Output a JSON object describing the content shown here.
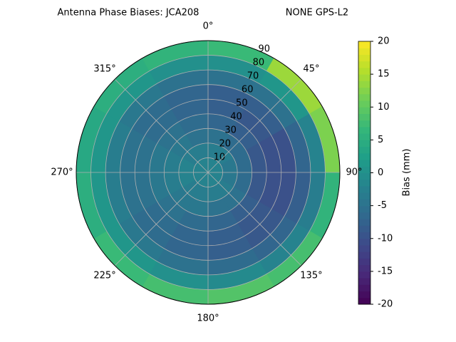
{
  "chart_data": {
    "type": "polar-heatmap",
    "title": "Antenna Phase Biases: JCA208",
    "subtitle": "NONE GPS-L2",
    "colorbar_label": "Bias (mm)",
    "colormap": "viridis",
    "clim": [
      -20,
      20
    ],
    "cticks": [
      -20,
      -15,
      -10,
      -5,
      0,
      5,
      10,
      15,
      20
    ],
    "rlim": [
      0,
      90
    ],
    "rticks": [
      10,
      20,
      30,
      40,
      50,
      60,
      70,
      80,
      90
    ],
    "thetaticks": [
      {
        "value": 0,
        "label": "0°"
      },
      {
        "value": 45,
        "label": "45°"
      },
      {
        "value": 90,
        "label": "90°"
      },
      {
        "value": 135,
        "label": "135°"
      },
      {
        "value": 180,
        "label": "180°"
      },
      {
        "value": 225,
        "label": "225°"
      },
      {
        "value": 270,
        "label": "270°"
      },
      {
        "value": 315,
        "label": "315°"
      }
    ],
    "r_bins": [
      0,
      10,
      20,
      30,
      40,
      50,
      60,
      70,
      80,
      90
    ],
    "theta_bins": [
      0,
      30,
      60,
      90,
      120,
      150,
      180,
      210,
      240,
      270,
      300,
      330,
      360
    ],
    "grid": true,
    "values": [
      [
        -2,
        -2,
        -2,
        -2,
        -2,
        -2,
        -2,
        -2,
        -2,
        -2,
        -2,
        -2
      ],
      [
        -3,
        -3,
        -4,
        -4,
        -3,
        -3,
        -3,
        -3,
        -2,
        -2,
        -3,
        -3
      ],
      [
        -5,
        -6,
        -6,
        -6,
        -5,
        -5,
        -4,
        -4,
        -3,
        -3,
        -4,
        -5
      ],
      [
        -7,
        -8,
        -9,
        -9,
        -8,
        -7,
        -6,
        -5,
        -4,
        -4,
        -5,
        -6
      ],
      [
        -8,
        -9,
        -10,
        -10,
        -9,
        -8,
        -7,
        -6,
        -5,
        -5,
        -6,
        -7
      ],
      [
        -8,
        -8,
        -10,
        -10,
        -9,
        -8,
        -7,
        -6,
        -5,
        -5,
        -6,
        -7
      ],
      [
        -5,
        -5,
        -7,
        -8,
        -7,
        -6,
        -5,
        -4,
        -3,
        -3,
        -4,
        -5
      ],
      [
        0,
        1,
        -2,
        -3,
        -2,
        -1,
        0,
        1,
        1,
        1,
        1,
        0
      ],
      [
        7,
        14,
        12,
        6,
        8,
        9,
        8,
        7,
        5,
        4,
        5,
        6
      ]
    ]
  }
}
